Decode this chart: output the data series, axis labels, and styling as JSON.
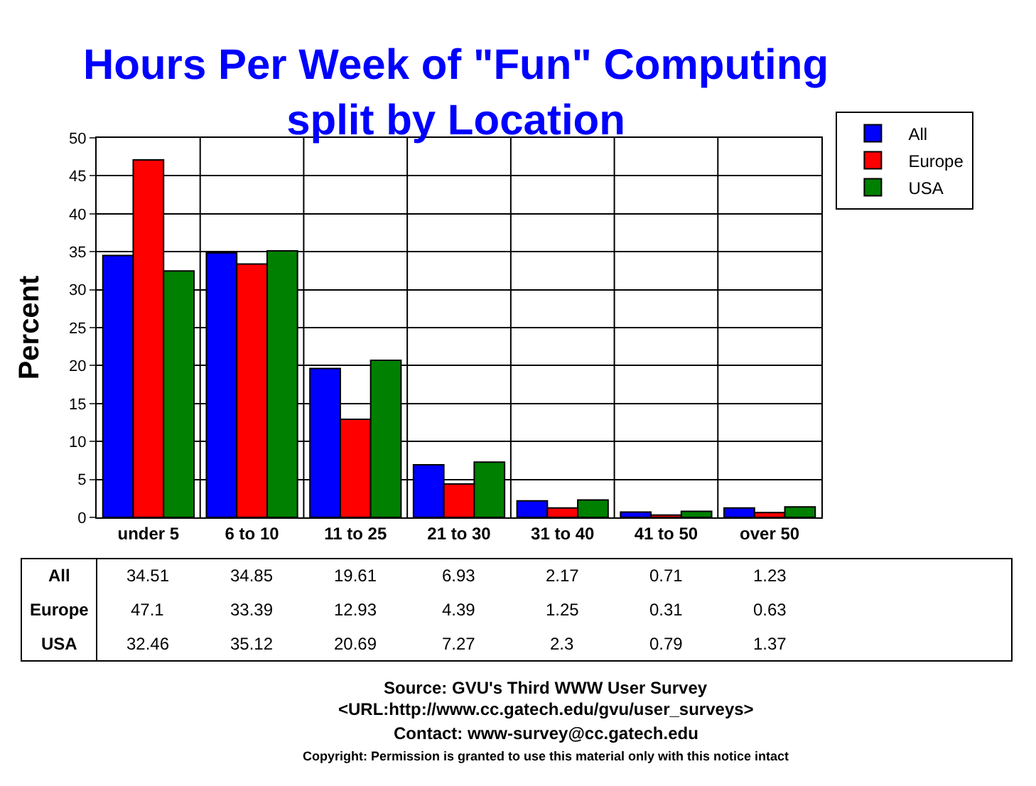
{
  "chart_data": {
    "type": "bar",
    "title": "Hours Per Week of \"Fun\" Computing\nsplit by Location",
    "ylabel": "Percent",
    "categories": [
      "under 5",
      "6 to 10",
      "11 to 25",
      "21 to 30",
      "31 to 40",
      "41 to 50",
      "over 50"
    ],
    "series": [
      {
        "name": "All",
        "color": "#0000ff",
        "values": [
          34.51,
          34.85,
          19.61,
          6.93,
          2.17,
          0.71,
          1.23
        ]
      },
      {
        "name": "Europe",
        "color": "#ff0000",
        "values": [
          47.1,
          33.39,
          12.93,
          4.39,
          1.25,
          0.31,
          0.63
        ]
      },
      {
        "name": "USA",
        "color": "#008000",
        "values": [
          32.46,
          35.12,
          20.69,
          7.27,
          2.3,
          0.79,
          1.37
        ]
      }
    ],
    "ylim": [
      0,
      50
    ],
    "yticks": [
      0,
      5,
      10,
      15,
      20,
      25,
      30,
      35,
      40,
      45,
      50
    ],
    "grid": true,
    "legend": "top right",
    "data_labels": true,
    "annotations": [
      "Source: GVU's Third WWW User Survey",
      "<URL:http://www.cc.gatech.edu/gvu/user_surveys>",
      "Contact: www-survey@cc.gatech.edu",
      "Copyright: Permission is granted to use this material only with this notice intact"
    ]
  }
}
